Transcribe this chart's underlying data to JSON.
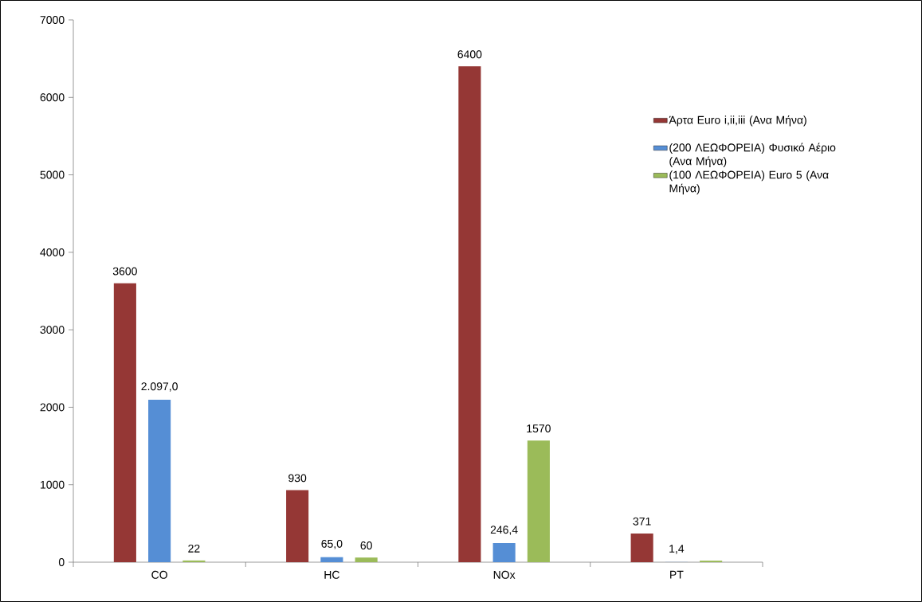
{
  "chart_data": {
    "type": "bar",
    "categories": [
      "CO",
      "HC",
      "NOx",
      "PT"
    ],
    "series": [
      {
        "name": "Άρτα Euro i,ii,iii  (Ανα Μήνα)",
        "color": "#953735",
        "values": [
          3600,
          930,
          6400,
          371
        ],
        "value_labels": [
          "3600",
          "930",
          "6400",
          "371"
        ]
      },
      {
        "name": "(200 ΛΕΩΦΟΡΕΙΑ) Φυσικό Αέριο (Ανα Μήνα)",
        "color": "#558ed5",
        "values": [
          2097,
          65,
          246.4,
          1.4
        ],
        "value_labels": [
          "2.097,0",
          "65,0",
          "246,4",
          "1,4"
        ]
      },
      {
        "name": "(100 ΛΕΩΦΟΡΕΙΑ) Euro 5 (Ανα Μήνα)",
        "color": "#9bbb59",
        "values": [
          22,
          60,
          1570,
          20
        ],
        "value_labels": [
          "22",
          "60",
          "1570",
          null
        ]
      }
    ],
    "ylim": [
      0,
      7000
    ],
    "yticks": [
      0,
      1000,
      2000,
      3000,
      4000,
      5000,
      6000,
      7000
    ],
    "legend": "right",
    "grid": false
  }
}
